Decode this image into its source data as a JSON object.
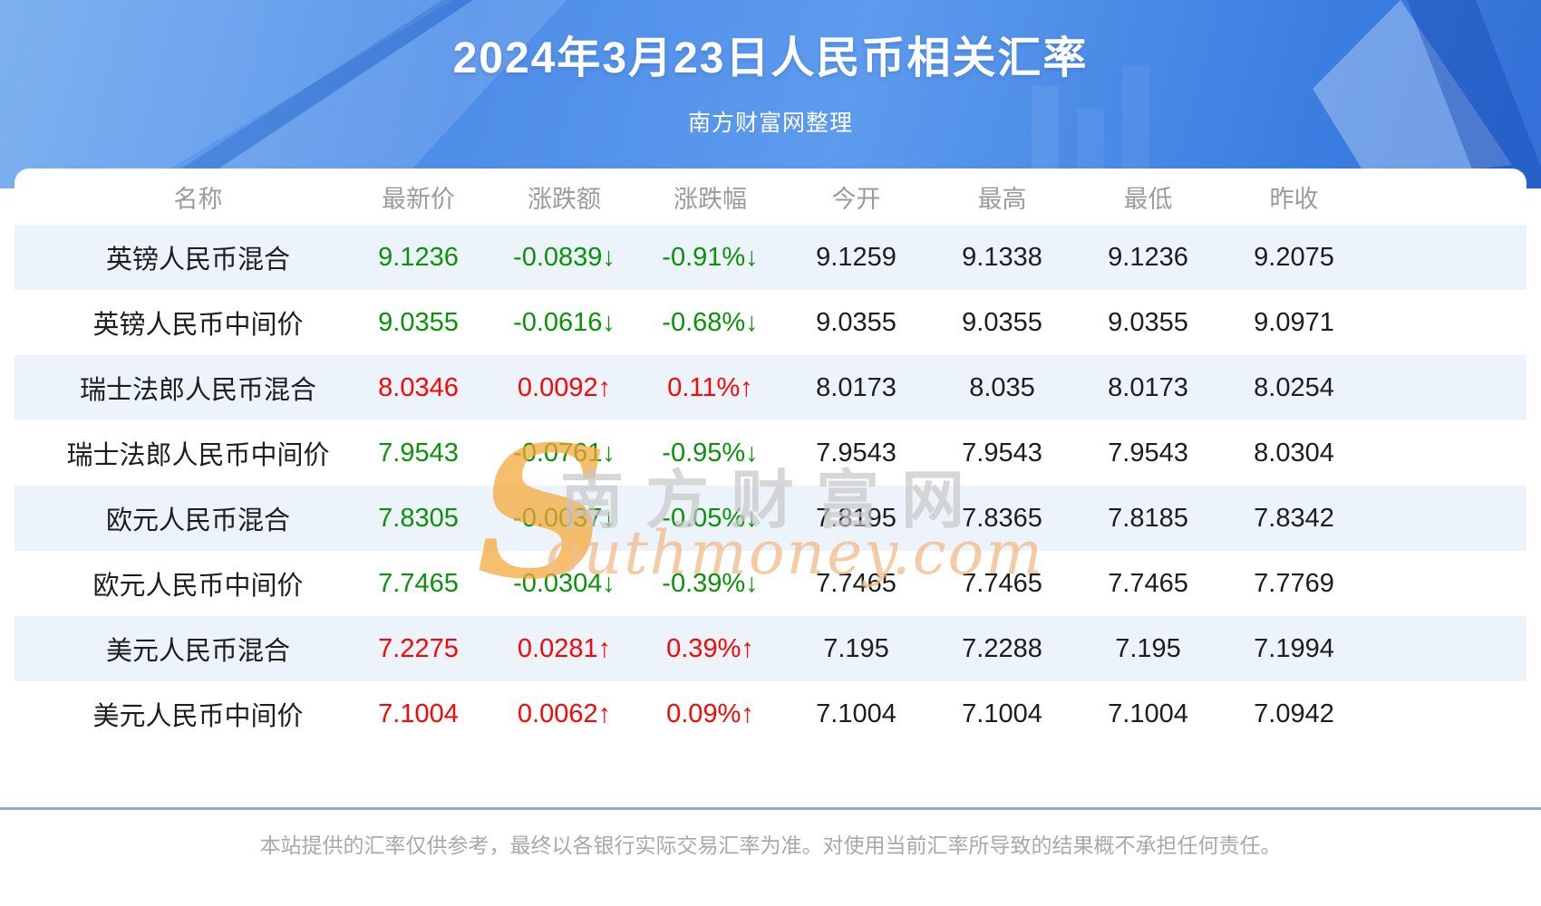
{
  "page": {
    "title": "2024年3月23日人民币相关汇率",
    "subtitle": "南方财富网整理",
    "disclaimer": "本站提供的汇率仅供参考，最终以各银行实际交易汇率为准。对使用当前汇率所导致的结果概不承担任何责任。"
  },
  "watermark": {
    "initial": "S",
    "cn": "南方财富网",
    "en": "outhmoney.com"
  },
  "colors": {
    "hero_blue": "#4e8de8",
    "up_red": "#fb0606",
    "down_green": "#0a930a",
    "stripe": "#edf3fb",
    "header_gray": "#9b9b9b",
    "divider": "#97abc0"
  },
  "chart_data": {
    "type": "table",
    "title": "2024年3月23日人民币相关汇率",
    "subtitle": "南方财富网整理",
    "columns": [
      "名称",
      "最新价",
      "涨跌额",
      "涨跌幅",
      "今开",
      "最高",
      "最低",
      "昨收"
    ],
    "rows": [
      [
        "英镑人民币混合",
        "9.1236",
        "-0.0839↓",
        "-0.91%↓",
        "9.1259",
        "9.1338",
        "9.1236",
        "9.2075"
      ],
      [
        "英镑人民币中间价",
        "9.0355",
        "-0.0616↓",
        "-0.68%↓",
        "9.0355",
        "9.0355",
        "9.0355",
        "9.0971"
      ],
      [
        "瑞士法郎人民币混合",
        "8.0346",
        "0.0092↑",
        "0.11%↑",
        "8.0173",
        "8.035",
        "8.0173",
        "8.0254"
      ],
      [
        "瑞士法郎人民币中间价",
        "7.9543",
        "-0.0761↓",
        "-0.95%↓",
        "7.9543",
        "7.9543",
        "7.9543",
        "8.0304"
      ],
      [
        "欧元人民币混合",
        "7.8305",
        "-0.0037↓",
        "-0.05%↓",
        "7.8195",
        "7.8365",
        "7.8185",
        "7.8342"
      ],
      [
        "欧元人民币中间价",
        "7.7465",
        "-0.0304↓",
        "-0.39%↓",
        "7.7465",
        "7.7465",
        "7.7465",
        "7.7769"
      ],
      [
        "美元人民币混合",
        "7.2275",
        "0.0281↑",
        "0.39%↑",
        "7.195",
        "7.2288",
        "7.195",
        "7.1994"
      ],
      [
        "美元人民币中间价",
        "7.1004",
        "0.0062↑",
        "0.09%↑",
        "7.1004",
        "7.1004",
        "7.1004",
        "7.0942"
      ]
    ]
  }
}
